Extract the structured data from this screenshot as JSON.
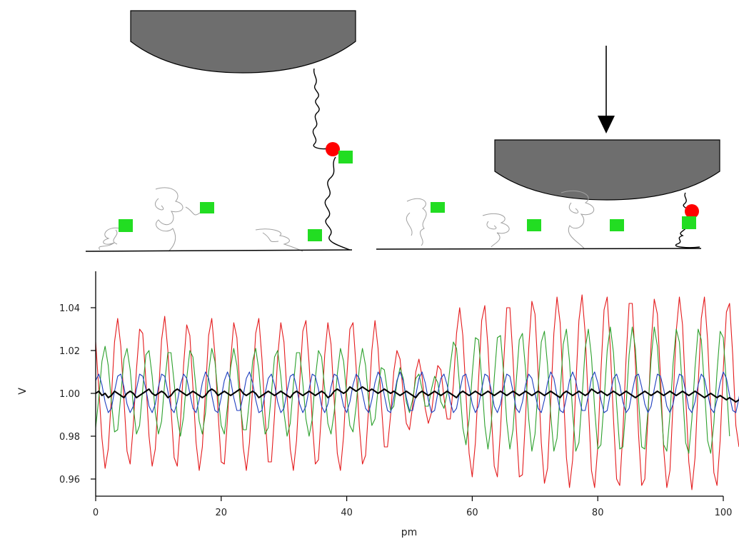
{
  "illustration": {
    "tip_color": "#6e6e6e",
    "surface_color": "#000000",
    "tethered_chain_color": "#000000",
    "free_chain_color": "#a0a0a0",
    "ligand_color": "#ff0000",
    "receptor_color": "#22dd22",
    "arrow_icon": "down-arrow-icon"
  },
  "chart_data": {
    "type": "line",
    "xlabel": "pm",
    "ylabel": "V",
    "xlim": [
      0,
      100
    ],
    "ylim": [
      0.952,
      1.057
    ],
    "x_ticks": [
      0,
      20,
      40,
      60,
      80,
      100
    ],
    "y_ticks": [
      0.96,
      0.98,
      1.0,
      1.02,
      1.04
    ],
    "x_tick_labels": [
      "0",
      "20",
      "40",
      "60",
      "80",
      "100"
    ],
    "y_tick_labels": [
      "0.96",
      "0.98",
      "1.00",
      "1.02",
      "1.04"
    ],
    "grid": false,
    "legend": "none",
    "series": [
      {
        "color": "#e41a1c",
        "x_start": 0,
        "x_end": 100,
        "x_step": 0.5,
        "values": [
          1.024,
          1.002,
          0.979,
          0.965,
          0.974,
          0.998,
          1.024,
          1.035,
          1.022,
          0.997,
          0.973,
          0.967,
          0.985,
          1.011,
          1.03,
          1.028,
          1.006,
          0.98,
          0.966,
          0.974,
          0.999,
          1.025,
          1.036,
          1.02,
          0.993,
          0.97,
          0.966,
          0.986,
          1.013,
          1.032,
          1.027,
          1.003,
          0.977,
          0.964,
          0.975,
          1.001,
          1.027,
          1.035,
          1.018,
          0.991,
          0.968,
          0.967,
          0.988,
          1.015,
          1.033,
          1.026,
          1.001,
          0.975,
          0.964,
          0.977,
          1.003,
          1.028,
          1.035,
          1.016,
          0.989,
          0.968,
          0.968,
          0.99,
          1.017,
          1.033,
          1.024,
          0.999,
          0.974,
          0.964,
          0.978,
          1.005,
          1.029,
          1.034,
          1.014,
          0.987,
          0.967,
          0.969,
          0.992,
          1.018,
          1.033,
          1.023,
          0.997,
          0.972,
          0.964,
          0.98,
          1.007,
          1.03,
          1.033,
          1.012,
          0.985,
          0.967,
          0.971,
          0.994,
          1.02,
          1.034,
          1.021,
          0.996,
          0.975,
          0.975,
          0.99,
          1.01,
          1.02,
          1.016,
          1.0,
          0.986,
          0.983,
          0.994,
          1.01,
          1.016,
          1.008,
          0.993,
          0.986,
          0.991,
          1.003,
          1.013,
          1.011,
          0.998,
          0.988,
          0.988,
          1.004,
          1.028,
          1.04,
          1.027,
          1.0,
          0.972,
          0.961,
          0.977,
          1.006,
          1.034,
          1.041,
          1.022,
          0.992,
          0.966,
          0.961,
          0.983,
          1.014,
          1.04,
          1.04,
          1.016,
          0.985,
          0.961,
          0.962,
          0.989,
          1.021,
          1.043,
          1.037,
          1.009,
          0.977,
          0.958,
          0.965,
          0.996,
          1.028,
          1.045,
          1.033,
          1.002,
          0.97,
          0.956,
          0.969,
          1.003,
          1.034,
          1.046,
          1.028,
          0.995,
          0.964,
          0.956,
          0.975,
          1.01,
          1.039,
          1.045,
          1.021,
          0.988,
          0.96,
          0.957,
          0.982,
          1.016,
          1.042,
          1.042,
          1.014,
          0.981,
          0.957,
          0.96,
          0.989,
          1.023,
          1.044,
          1.037,
          1.007,
          0.974,
          0.956,
          0.964,
          0.996,
          1.029,
          1.045,
          1.032,
          0.999,
          0.968,
          0.955,
          0.97,
          1.004,
          1.035,
          1.045,
          1.025,
          0.992,
          0.963,
          0.957,
          0.978,
          1.011,
          1.038,
          1.042,
          1.018,
          0.985,
          0.975
        ]
      },
      {
        "color": "#2ca02c",
        "x_start": 0,
        "x_end": 100,
        "x_step": 0.5,
        "values": [
          0.984,
          0.998,
          1.015,
          1.022,
          1.013,
          0.996,
          0.982,
          0.983,
          0.999,
          1.016,
          1.021,
          1.011,
          0.994,
          0.981,
          0.985,
          1.002,
          1.018,
          1.02,
          1.008,
          0.991,
          0.981,
          0.987,
          1.005,
          1.019,
          1.019,
          1.005,
          0.989,
          0.98,
          0.989,
          1.007,
          1.02,
          1.017,
          1.002,
          0.987,
          0.981,
          0.991,
          1.01,
          1.021,
          1.015,
          0.999,
          0.985,
          0.981,
          0.994,
          1.012,
          1.021,
          1.013,
          0.996,
          0.983,
          0.983,
          0.997,
          1.015,
          1.021,
          1.011,
          0.993,
          0.981,
          0.984,
          1.0,
          1.017,
          1.02,
          1.008,
          0.991,
          0.98,
          0.986,
          1.004,
          1.019,
          1.019,
          1.005,
          0.988,
          0.98,
          0.988,
          1.007,
          1.02,
          1.017,
          1.002,
          0.986,
          0.981,
          0.991,
          1.009,
          1.021,
          1.015,
          0.999,
          0.985,
          0.982,
          0.994,
          1.012,
          1.021,
          1.013,
          0.996,
          0.985,
          0.988,
          1.002,
          1.012,
          1.011,
          1.001,
          0.992,
          0.994,
          1.005,
          1.012,
          1.007,
          0.996,
          0.991,
          0.997,
          1.007,
          1.009,
          1.002,
          0.994,
          0.994,
          1.002,
          1.008,
          1.005,
          0.996,
          0.993,
          1.0,
          1.013,
          1.024,
          1.021,
          1.003,
          0.984,
          0.976,
          0.988,
          1.009,
          1.026,
          1.025,
          1.007,
          0.985,
          0.974,
          0.985,
          1.007,
          1.026,
          1.027,
          1.009,
          0.987,
          0.974,
          0.983,
          1.005,
          1.025,
          1.028,
          1.011,
          0.988,
          0.973,
          0.981,
          1.003,
          1.024,
          1.029,
          1.013,
          0.99,
          0.973,
          0.979,
          1.0,
          1.023,
          1.03,
          1.015,
          0.991,
          0.973,
          0.977,
          0.998,
          1.021,
          1.03,
          1.017,
          0.993,
          0.974,
          0.976,
          0.996,
          1.02,
          1.031,
          1.019,
          0.995,
          0.974,
          0.975,
          0.994,
          1.018,
          1.031,
          1.021,
          0.997,
          0.975,
          0.974,
          0.992,
          1.016,
          1.031,
          1.022,
          0.999,
          0.976,
          0.973,
          0.99,
          1.014,
          1.03,
          1.024,
          1.001,
          0.977,
          0.972,
          0.988,
          1.012,
          1.03,
          1.025,
          1.003,
          0.978,
          0.972,
          0.986,
          1.01,
          1.029,
          1.026,
          1.004,
          0.98
        ]
      },
      {
        "color": "#1f3fbf",
        "x_start": 0,
        "x_end": 100,
        "x_step": 0.5,
        "values": [
          1.006,
          1.009,
          1.004,
          0.996,
          0.991,
          0.993,
          1.001,
          1.008,
          1.009,
          1.003,
          0.995,
          0.991,
          0.994,
          1.002,
          1.009,
          1.008,
          1.002,
          0.994,
          0.991,
          0.995,
          1.003,
          1.009,
          1.008,
          1.001,
          0.993,
          0.991,
          0.996,
          1.004,
          1.009,
          1.007,
          1.0,
          0.993,
          0.991,
          0.997,
          1.005,
          1.01,
          1.007,
          0.999,
          0.992,
          0.991,
          0.998,
          1.006,
          1.01,
          1.006,
          0.998,
          0.992,
          0.992,
          0.999,
          1.007,
          1.01,
          1.005,
          0.997,
          0.991,
          0.992,
          1.0,
          1.007,
          1.009,
          1.004,
          0.996,
          0.991,
          0.993,
          1.001,
          1.008,
          1.009,
          1.003,
          0.995,
          0.991,
          0.994,
          1.002,
          1.009,
          1.008,
          1.002,
          0.994,
          0.991,
          0.995,
          1.003,
          1.009,
          1.008,
          1.001,
          0.994,
          0.991,
          0.996,
          1.004,
          1.009,
          1.007,
          1.0,
          0.993,
          0.991,
          0.997,
          1.005,
          1.01,
          1.007,
          0.999,
          0.992,
          0.991,
          0.998,
          1.006,
          1.01,
          1.006,
          0.998,
          0.992,
          0.992,
          0.999,
          1.007,
          1.01,
          1.005,
          0.997,
          0.991,
          0.992,
          1.0,
          1.007,
          1.009,
          1.004,
          0.996,
          0.991,
          0.993,
          1.001,
          1.008,
          1.009,
          1.003,
          0.995,
          0.991,
          0.994,
          1.002,
          1.009,
          1.008,
          1.002,
          0.994,
          0.991,
          0.995,
          1.003,
          1.009,
          1.008,
          1.001,
          0.993,
          0.991,
          0.996,
          1.004,
          1.009,
          1.007,
          1.0,
          0.993,
          0.991,
          0.997,
          1.005,
          1.01,
          1.007,
          0.999,
          0.992,
          0.991,
          0.998,
          1.006,
          1.01,
          1.006,
          0.998,
          0.992,
          0.992,
          0.999,
          1.007,
          1.01,
          1.005,
          0.997,
          0.991,
          0.992,
          1.0,
          1.007,
          1.009,
          1.004,
          0.996,
          0.991,
          0.993,
          1.001,
          1.008,
          1.009,
          1.003,
          0.995,
          0.991,
          0.994,
          1.002,
          1.009,
          1.008,
          1.002,
          0.994,
          0.991,
          0.995,
          1.003,
          1.009,
          1.008,
          1.001,
          0.993,
          0.991,
          0.996,
          1.004,
          1.009,
          1.007,
          1.0,
          0.993,
          0.991,
          0.997,
          1.005,
          1.01,
          1.007,
          0.999,
          0.992,
          0.991,
          0.998,
          1.006
        ]
      },
      {
        "color": "#000000",
        "x_start": 0,
        "x_end": 100,
        "x_step": 0.5,
        "values": [
          1.0,
          1.001,
          0.999,
          1.0,
          0.998,
          0.999,
          1.001,
          1.0,
          0.999,
          0.998,
          1.0,
          1.001,
          1.0,
          0.998,
          0.999,
          1.0,
          1.001,
          1.002,
          1.0,
          0.999,
          1.0,
          1.001,
          1.0,
          0.998,
          0.999,
          1.001,
          1.002,
          1.001,
          1.0,
          0.999,
          1.0,
          1.001,
          1.0,
          0.999,
          0.998,
          0.999,
          1.001,
          1.002,
          1.001,
          0.999,
          1.0,
          1.001,
          1.0,
          0.999,
          1.0,
          1.001,
          1.002,
          1.0,
          0.999,
          1.0,
          1.001,
          1.0,
          0.998,
          0.999,
          1.0,
          1.001,
          1.0,
          0.999,
          1.0,
          1.001,
          1.0,
          0.999,
          0.998,
          1.0,
          1.001,
          1.0,
          0.999,
          1.0,
          1.001,
          1.0,
          0.999,
          1.0,
          1.001,
          1.0,
          0.998,
          0.999,
          1.001,
          1.002,
          1.001,
          1.0,
          1.001,
          1.003,
          1.002,
          1.001,
          1.002,
          1.003,
          1.002,
          1.001,
          1.002,
          1.001,
          1.0,
          1.001,
          1.002,
          1.001,
          1.0,
          1.001,
          1.0,
          0.999,
          1.0,
          1.001,
          1.0,
          0.999,
          0.998,
          1.0,
          1.001,
          1.0,
          0.999,
          1.0,
          1.001,
          1.0,
          0.999,
          1.0,
          1.001,
          1.0,
          0.999,
          0.998,
          1.0,
          1.001,
          1.0,
          0.999,
          1.0,
          1.001,
          1.0,
          0.999,
          1.0,
          1.001,
          1.0,
          0.999,
          1.0,
          1.001,
          1.0,
          0.999,
          1.0,
          1.001,
          1.0,
          0.999,
          1.0,
          1.001,
          1.0,
          0.999,
          1.0,
          1.001,
          1.0,
          0.999,
          1.0,
          1.001,
          1.0,
          0.999,
          0.998,
          1.0,
          1.001,
          1.0,
          0.999,
          1.0,
          1.001,
          1.0,
          0.999,
          1.0,
          1.002,
          1.001,
          1.0,
          1.001,
          1.0,
          0.999,
          1.0,
          1.001,
          1.0,
          0.999,
          1.0,
          1.001,
          1.0,
          0.999,
          0.998,
          0.999,
          1.0,
          1.001,
          1.0,
          0.999,
          1.0,
          1.001,
          1.0,
          0.999,
          1.0,
          1.001,
          1.0,
          0.999,
          1.0,
          1.001,
          1.0,
          0.999,
          1.0,
          1.001,
          1.0,
          0.999,
          0.998,
          0.999,
          1.0,
          0.999,
          0.998,
          0.999,
          0.998,
          0.997,
          0.998,
          0.997,
          0.996,
          0.997
        ]
      }
    ]
  }
}
